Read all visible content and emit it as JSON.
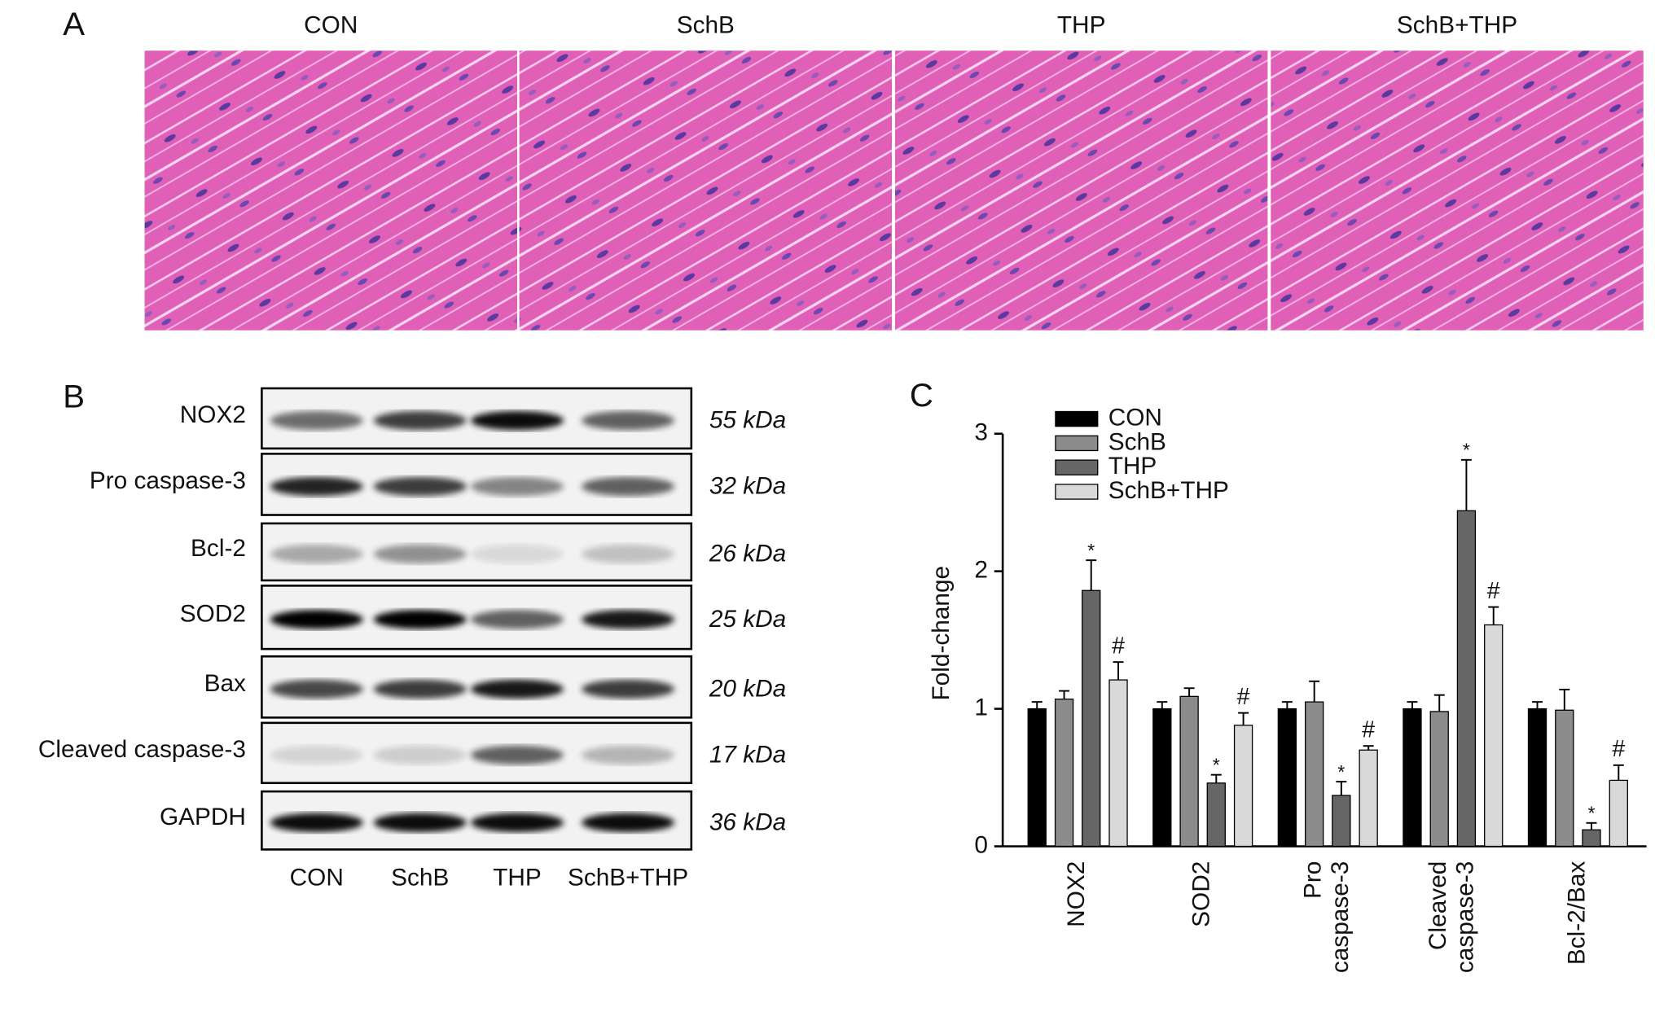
{
  "panel_a": {
    "label": "A",
    "groups": [
      "CON",
      "SchB",
      "THP",
      "SchB+THP"
    ]
  },
  "panel_b": {
    "label": "B",
    "proteins": [
      {
        "name": "NOX2",
        "size": "55 kDa"
      },
      {
        "name": "Pro caspase-3",
        "size": "32 kDa"
      },
      {
        "name": "Bcl-2",
        "size": "26 kDa"
      },
      {
        "name": "SOD2",
        "size": "25 kDa"
      },
      {
        "name": "Bax",
        "size": "20 kDa"
      },
      {
        "name": "Cleaved caspase-3",
        "size": "17 kDa"
      },
      {
        "name": "GAPDH",
        "size": "36 kDa"
      }
    ],
    "lanes": [
      "CON",
      "SchB",
      "THP",
      "SchB+THP"
    ]
  },
  "chart_data": {
    "type": "bar",
    "panel_label": "C",
    "y_label": "Fold-change",
    "categories": [
      "NOX2",
      "SOD2",
      "Pro caspase-3",
      "Cleaved caspase-3",
      "Bcl-2/Bax"
    ],
    "series": [
      {
        "name": "CON",
        "color": "#000000",
        "values": [
          1.0,
          1.0,
          1.0,
          1.0,
          1.0
        ],
        "errors": [
          0.05,
          0.05,
          0.05,
          0.05,
          0.05
        ]
      },
      {
        "name": "SchB",
        "color": "#8c8c8c",
        "values": [
          1.07,
          1.09,
          1.05,
          0.98,
          0.99
        ],
        "errors": [
          0.06,
          0.06,
          0.15,
          0.12,
          0.15
        ]
      },
      {
        "name": "THP",
        "color": "#666666",
        "values": [
          1.86,
          0.46,
          0.37,
          2.44,
          0.12
        ],
        "errors": [
          0.22,
          0.06,
          0.1,
          0.37,
          0.05
        ],
        "markers": [
          "*",
          "*",
          "*",
          "*",
          "*"
        ]
      },
      {
        "name": "SchB+THP",
        "color": "#d9d9d9",
        "values": [
          1.21,
          0.88,
          0.7,
          1.61,
          0.48
        ],
        "errors": [
          0.13,
          0.09,
          0.03,
          0.13,
          0.11
        ],
        "markers": [
          "#",
          "#",
          "#",
          "#",
          "#"
        ]
      }
    ],
    "ylim": [
      0,
      3
    ],
    "yticks": [
      0,
      1,
      2,
      3
    ]
  }
}
